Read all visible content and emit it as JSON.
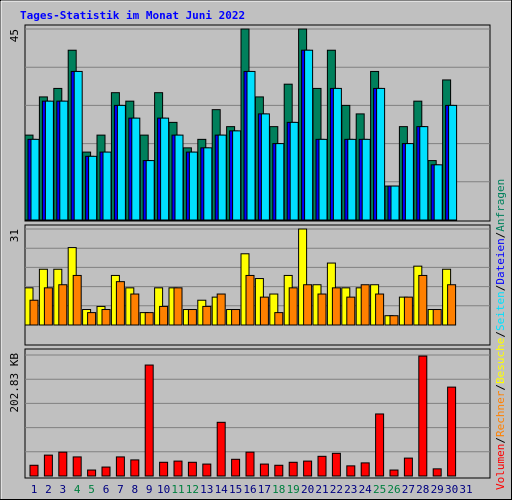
{
  "title": "Tages-Statistik im Monat Juni 2022",
  "separator": "/",
  "chart_data": [
    {
      "type": "bar",
      "categories": [
        "1",
        "2",
        "3",
        "4",
        "5",
        "6",
        "7",
        "8",
        "9",
        "10",
        "11",
        "12",
        "13",
        "14",
        "15",
        "16",
        "17",
        "18",
        "19",
        "20",
        "21",
        "22",
        "23",
        "24",
        "25",
        "26",
        "27",
        "28",
        "29",
        "30",
        "31"
      ],
      "ylim": [
        0,
        45
      ],
      "yticks": [
        45
      ],
      "series": [
        {
          "name": "Anfragen",
          "color": "#00805c",
          "values": [
            20,
            29,
            31,
            40,
            16,
            20,
            30,
            28,
            20,
            30,
            23,
            17,
            19,
            26,
            22,
            45,
            29,
            22,
            32,
            45,
            31,
            40,
            27,
            25,
            35,
            8,
            22,
            28,
            14,
            33,
            null
          ]
        },
        {
          "name": "Dateien",
          "color": "#0000ff",
          "values": [
            19,
            28,
            28,
            35,
            15,
            16,
            27,
            24,
            14,
            24,
            20,
            16,
            17,
            20,
            21,
            35,
            25,
            18,
            23,
            40,
            19,
            31,
            19,
            19,
            31,
            8,
            18,
            22,
            13,
            27,
            null
          ]
        },
        {
          "name": "Seiten",
          "color": "#00e0ff",
          "values": [
            19,
            28,
            28,
            35,
            15,
            16,
            27,
            24,
            14,
            24,
            20,
            16,
            17,
            20,
            21,
            35,
            25,
            18,
            23,
            40,
            19,
            31,
            19,
            19,
            31,
            8,
            18,
            22,
            13,
            27,
            null
          ]
        }
      ]
    },
    {
      "type": "bar",
      "categories": [
        "1",
        "2",
        "3",
        "4",
        "5",
        "6",
        "7",
        "8",
        "9",
        "10",
        "11",
        "12",
        "13",
        "14",
        "15",
        "16",
        "17",
        "18",
        "19",
        "20",
        "21",
        "22",
        "23",
        "24",
        "25",
        "26",
        "27",
        "28",
        "29",
        "30",
        "31"
      ],
      "ylim": [
        0,
        31
      ],
      "yticks": [
        31
      ],
      "series": [
        {
          "name": "Besuche",
          "color": "#ffff00",
          "values": [
            12,
            18,
            18,
            25,
            5,
            6,
            16,
            12,
            4,
            12,
            12,
            5,
            8,
            9,
            5,
            23,
            15,
            10,
            16,
            31,
            13,
            20,
            12,
            12,
            13,
            3,
            9,
            19,
            5,
            18,
            null
          ]
        },
        {
          "name": "Rechner",
          "color": "#ff8000",
          "values": [
            8,
            12,
            13,
            16,
            4,
            5,
            14,
            10,
            4,
            6,
            12,
            5,
            6,
            10,
            5,
            16,
            9,
            4,
            12,
            13,
            10,
            12,
            9,
            13,
            10,
            3,
            9,
            16,
            5,
            13,
            null
          ]
        }
      ]
    },
    {
      "type": "bar",
      "categories": [
        "1",
        "2",
        "3",
        "4",
        "5",
        "6",
        "7",
        "8",
        "9",
        "10",
        "11",
        "12",
        "13",
        "14",
        "15",
        "16",
        "17",
        "18",
        "19",
        "20",
        "21",
        "22",
        "23",
        "24",
        "25",
        "26",
        "27",
        "28",
        "29",
        "30",
        "31"
      ],
      "category_colors": [
        "#000080",
        "#000080",
        "#000080",
        "#008040",
        "#008040",
        "#000080",
        "#000080",
        "#000080",
        "#000080",
        "#000080",
        "#008040",
        "#008040",
        "#000080",
        "#000080",
        "#000080",
        "#000080",
        "#000080",
        "#008040",
        "#008040",
        "#000080",
        "#000080",
        "#000080",
        "#000080",
        "#000080",
        "#008040",
        "#008040",
        "#000080",
        "#000080",
        "#000080",
        "#000080",
        "#000080"
      ],
      "ylim": [
        0,
        202.83
      ],
      "yticks": [
        {
          "value": 202.83,
          "label": "202.83 KB"
        }
      ],
      "series": [
        {
          "name": "Volumen",
          "color": "#ff0000",
          "values": [
            18,
            35,
            40,
            32,
            10,
            15,
            32,
            27,
            186,
            23,
            25,
            23,
            20,
            90,
            28,
            40,
            20,
            18,
            23,
            25,
            33,
            38,
            17,
            22,
            104,
            10,
            30,
            201,
            12,
            149,
            null
          ]
        }
      ]
    }
  ]
}
